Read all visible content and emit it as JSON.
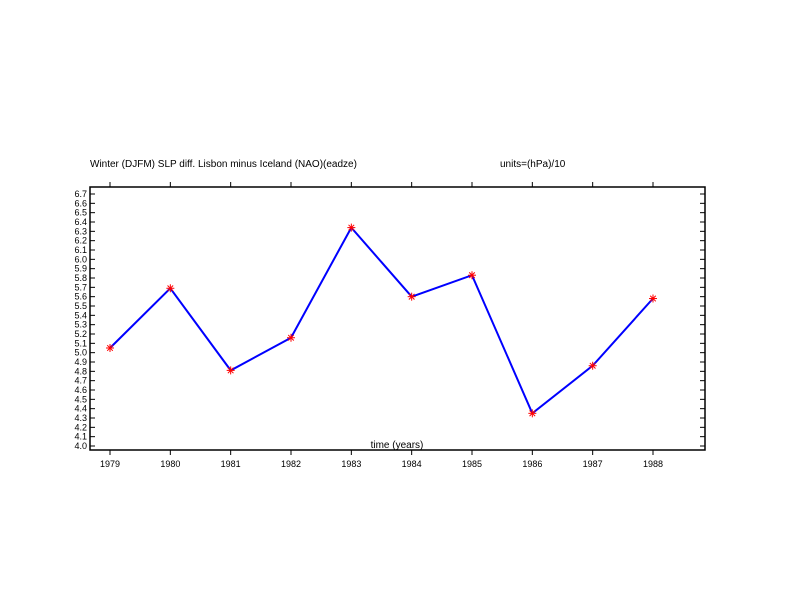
{
  "chart_data": {
    "type": "line",
    "title": "Winter (DJFM) SLP diff. Lisbon minus Iceland (NAO)(eadze)",
    "units": "units=(hPa)/10",
    "xlabel": "time (years)",
    "ylabel": "",
    "x": [
      1979,
      1980,
      1981,
      1982,
      1983,
      1984,
      1985,
      1986,
      1987,
      1988
    ],
    "xticks": [
      "1979",
      "1980",
      "1981",
      "1982",
      "1983",
      "1984",
      "1985",
      "1986",
      "1987",
      "1988"
    ],
    "xlim": [
      1979,
      1988
    ],
    "ylim": [
      4.0,
      6.7
    ],
    "yticks": [
      "4.0",
      "4.1",
      "4.2",
      "4.3",
      "4.4",
      "4.5",
      "4.6",
      "4.7",
      "4.8",
      "4.9",
      "5.0",
      "5.1",
      "5.2",
      "5.3",
      "5.4",
      "5.5",
      "5.6",
      "5.7",
      "5.8",
      "5.9",
      "6.0",
      "6.1",
      "6.2",
      "6.3",
      "6.4",
      "6.5",
      "6.6",
      "6.7"
    ],
    "series": [
      {
        "values": [
          5.05,
          5.69,
          4.81,
          5.16,
          6.34,
          5.6,
          5.83,
          4.35,
          4.86,
          5.58
        ],
        "line_color": "#0000ff",
        "marker_color": "#ff0000",
        "marker": "asterisk"
      }
    ],
    "grid": false
  }
}
